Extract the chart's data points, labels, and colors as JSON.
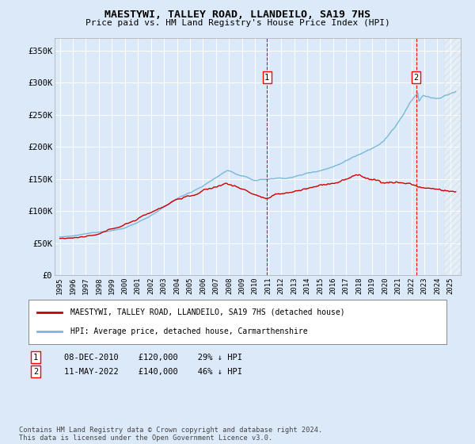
{
  "title": "MAESTYWI, TALLEY ROAD, LLANDEILO, SA19 7HS",
  "subtitle": "Price paid vs. HM Land Registry's House Price Index (HPI)",
  "background_color": "#ffffff",
  "plot_bg_color": "#ffffff",
  "fig_bg_color": "#dce9f8",
  "ylim": [
    0,
    370000
  ],
  "yticks": [
    0,
    50000,
    100000,
    150000,
    200000,
    250000,
    300000,
    350000
  ],
  "ytick_labels": [
    "£0",
    "£50K",
    "£100K",
    "£150K",
    "£200K",
    "£250K",
    "£300K",
    "£350K"
  ],
  "xlim_start": 1994.6,
  "xlim_end": 2025.8,
  "xticks": [
    1995,
    1996,
    1997,
    1998,
    1999,
    2000,
    2001,
    2002,
    2003,
    2004,
    2005,
    2006,
    2007,
    2008,
    2009,
    2010,
    2011,
    2012,
    2013,
    2014,
    2015,
    2016,
    2017,
    2018,
    2019,
    2020,
    2021,
    2022,
    2023,
    2024,
    2025
  ],
  "hpi_color": "#7ab8d9",
  "price_color": "#cc0000",
  "marker1_x": 2010.92,
  "marker1_label": "1",
  "marker1_date": "08-DEC-2010",
  "marker1_price": "£120,000",
  "marker1_hpi": "29% ↓ HPI",
  "marker2_x": 2022.37,
  "marker2_label": "2",
  "marker2_date": "11-MAY-2022",
  "marker2_price": "£140,000",
  "marker2_hpi": "46% ↓ HPI",
  "legend_label1": "MAESTYWI, TALLEY ROAD, LLANDEILO, SA19 7HS (detached house)",
  "legend_label2": "HPI: Average price, detached house, Carmarthenshire",
  "footer": "Contains HM Land Registry data © Crown copyright and database right 2024.\nThis data is licensed under the Open Government Licence v3.0."
}
